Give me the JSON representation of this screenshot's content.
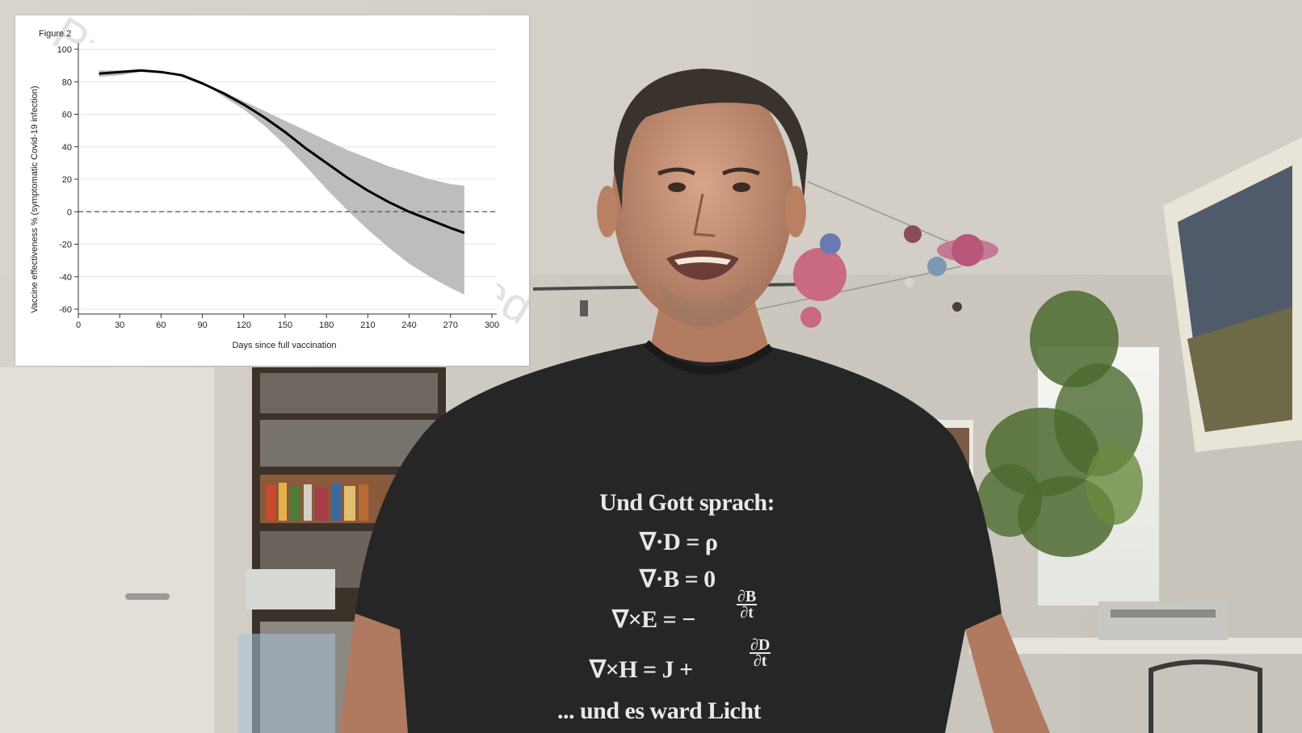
{
  "chart_data": {
    "type": "line",
    "title": "Figure 2",
    "xlabel": "Days since full vaccination",
    "ylabel": "Vaccine effectiveness % (symptomatic Covid-19 infection)",
    "xlim": [
      0,
      300
    ],
    "ylim": [
      -60,
      100
    ],
    "xticks": [
      0,
      30,
      60,
      90,
      120,
      150,
      180,
      210,
      240,
      270,
      300
    ],
    "yticks": [
      100,
      80,
      60,
      40,
      20,
      0,
      -20,
      -40,
      -60
    ],
    "reference_line": {
      "y": 0,
      "style": "dashed"
    },
    "grid": "horizontal",
    "series": [
      {
        "x": [
          15,
          30,
          45,
          60,
          75,
          90,
          105,
          120,
          135,
          150,
          165,
          180,
          195,
          210,
          225,
          240,
          255,
          270,
          280
        ],
        "y": [
          85,
          86,
          87,
          86,
          84,
          79,
          73,
          66,
          58,
          49,
          39,
          30,
          21,
          13,
          6,
          0,
          -5,
          -10,
          -13
        ],
        "lower": [
          83,
          84,
          86,
          86,
          84,
          79,
          71,
          63,
          53,
          41,
          28,
          14,
          1,
          -11,
          -22,
          -32,
          -40,
          -47,
          -51
        ],
        "upper": [
          87,
          87,
          87,
          86,
          84,
          79,
          74,
          68,
          62,
          56,
          50,
          44,
          38,
          33,
          28,
          24,
          20,
          17,
          16
        ]
      }
    ],
    "watermark": "Preprint not peer reviewed"
  },
  "shirt": {
    "line1": "Und Gott sprach:",
    "line2": "∇·D = ρ",
    "line3": "∇·B = 0",
    "line4_lhs": "∇×E = −",
    "line4_num": "∂B",
    "line4_den": "∂t",
    "line5_lhs": "∇×H = J +",
    "line5_num": "∂D",
    "line5_den": "∂t",
    "line6": "... und es ward Licht"
  }
}
